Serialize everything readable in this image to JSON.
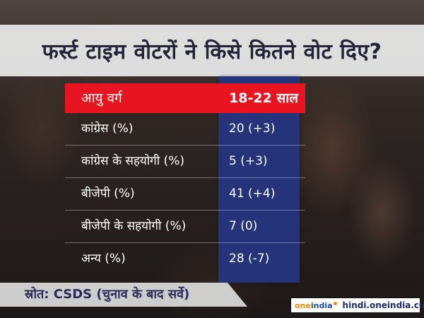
{
  "title": "फर्स्ट टाइम वोटरों ने किसे कितने वोट दिए?",
  "table": {
    "header": {
      "label": "आयु वर्ग",
      "value": "18-22 साल"
    },
    "rows": [
      {
        "label": "कांग्रेस (%)",
        "value": "20 (+3)"
      },
      {
        "label": "कांग्रेस के सहयोगी (%)",
        "value": "5 (+3)"
      },
      {
        "label": "बीजेपी (%)",
        "value": "41 (+4)"
      },
      {
        "label": "बीजेपी के सहयोगी (%)",
        "value": "7 (0)"
      },
      {
        "label": "अन्य (%)",
        "value": "28 (-7)"
      }
    ]
  },
  "source": "स्रोत: CSDS (चुनाव के बाद सर्वे)",
  "brand": {
    "logo_one": "one",
    "logo_india": "india",
    "url": "hindi.oneindia.com"
  },
  "colors": {
    "header_red": "#e8141f",
    "column_blue": "#24337a",
    "title_text": "#23233a"
  }
}
